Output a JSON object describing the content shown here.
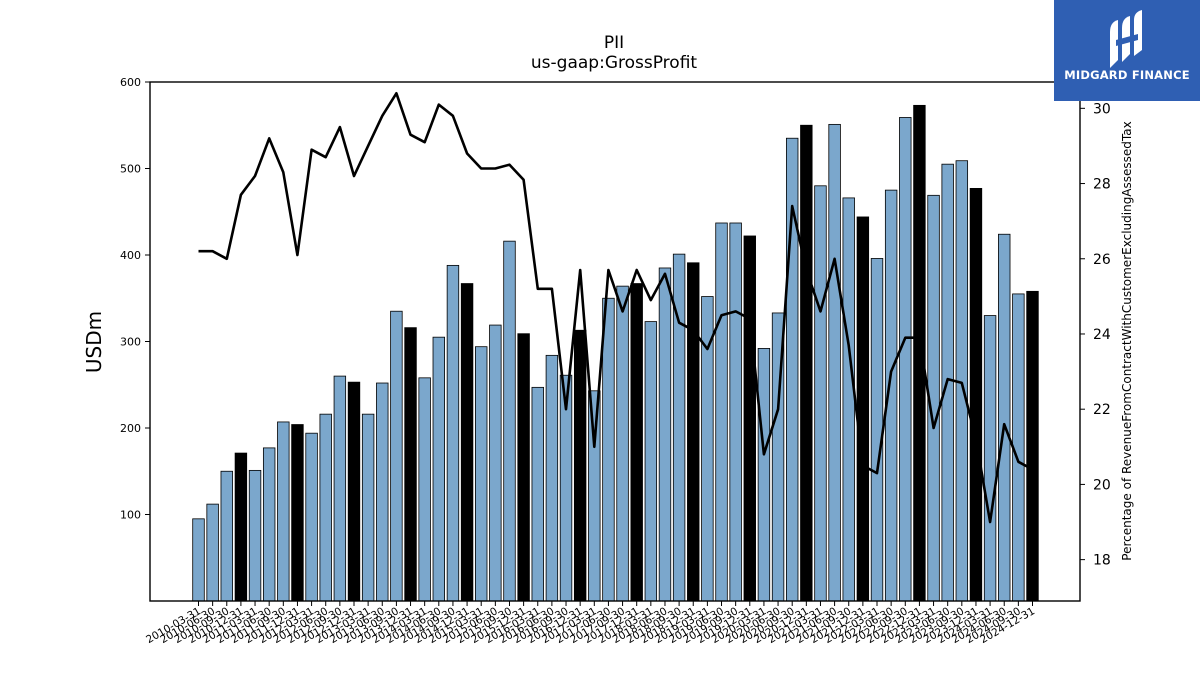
{
  "chart_data": {
    "type": "bar",
    "title": "PII",
    "subtitle": "us-gaap:GrossProfit",
    "ylabel": "USDm",
    "y2label": "Percentage of RevenueFromContractWithCustomerExcludingAssessedTax",
    "ylim": [
      0,
      600
    ],
    "y2lim": [
      16.9,
      30.7
    ],
    "yticks": [
      100,
      200,
      300,
      400,
      500,
      600
    ],
    "y2ticks": [
      18,
      20,
      22,
      24,
      26,
      28,
      30
    ],
    "grid": false,
    "bar_color": "#7ba7cc",
    "annual_bar_color": "#000000",
    "line_color": "#000000",
    "categories": [
      "2010-03-31",
      "2010-06-30",
      "2010-09-30",
      "2010-12-31",
      "2011-03-31",
      "2011-06-30",
      "2011-09-30",
      "2011-12-31",
      "2012-03-31",
      "2012-06-30",
      "2012-09-30",
      "2012-12-31",
      "2013-03-31",
      "2013-06-30",
      "2013-09-30",
      "2013-12-31",
      "2014-03-31",
      "2014-06-30",
      "2014-09-30",
      "2014-12-31",
      "2015-03-31",
      "2015-06-30",
      "2015-09-30",
      "2015-12-31",
      "2016-03-31",
      "2016-06-30",
      "2016-09-30",
      "2016-12-31",
      "2017-03-31",
      "2017-06-30",
      "2017-09-30",
      "2017-12-31",
      "2018-03-31",
      "2018-06-30",
      "2018-09-30",
      "2018-12-31",
      "2019-03-31",
      "2019-06-30",
      "2019-09-30",
      "2019-12-31",
      "2020-03-31",
      "2020-06-30",
      "2020-09-30",
      "2020-12-31",
      "2021-03-31",
      "2021-06-30",
      "2021-09-30",
      "2021-12-31",
      "2022-03-31",
      "2022-06-30",
      "2022-09-30",
      "2022-12-31",
      "2023-03-31",
      "2023-06-30",
      "2023-09-30",
      "2023-12-31",
      "2024-03-31",
      "2024-06-30",
      "2024-09-30",
      "2024-12-31"
    ],
    "series": [
      {
        "axis": "left",
        "kind": "bar",
        "values": [
          95,
          112,
          150,
          171,
          151,
          177,
          207,
          204,
          194,
          216,
          260,
          253,
          216,
          252,
          335,
          316,
          258,
          305,
          388,
          367,
          294,
          319,
          416,
          309,
          247,
          284,
          261,
          313,
          243,
          350,
          364,
          367,
          323,
          385,
          401,
          391,
          352,
          437,
          437,
          422,
          292,
          333,
          535,
          550,
          480,
          551,
          466,
          444,
          396,
          475,
          559,
          573,
          469,
          505,
          509,
          477,
          330,
          424,
          355,
          358
        ],
        "annual": [
          false,
          false,
          false,
          true,
          false,
          false,
          false,
          true,
          false,
          false,
          false,
          true,
          false,
          false,
          false,
          true,
          false,
          false,
          false,
          true,
          false,
          false,
          false,
          true,
          false,
          false,
          false,
          true,
          false,
          false,
          false,
          true,
          false,
          false,
          false,
          true,
          false,
          false,
          false,
          true,
          false,
          false,
          false,
          true,
          false,
          false,
          false,
          true,
          false,
          false,
          false,
          true,
          false,
          false,
          false,
          true,
          false,
          false,
          false,
          true
        ]
      },
      {
        "axis": "right",
        "kind": "line",
        "values": [
          26.2,
          26.2,
          26.0,
          27.7,
          28.2,
          29.2,
          28.3,
          26.1,
          28.9,
          28.7,
          29.5,
          28.2,
          29.0,
          29.8,
          30.4,
          29.3,
          29.1,
          30.1,
          29.8,
          28.8,
          28.4,
          28.4,
          28.5,
          28.1,
          25.2,
          25.2,
          22.0,
          25.7,
          21.0,
          25.7,
          24.6,
          25.7,
          24.9,
          25.6,
          24.3,
          24.1,
          23.6,
          24.5,
          24.6,
          24.4,
          20.8,
          22.0,
          27.4,
          25.7,
          24.6,
          26.0,
          23.7,
          20.5,
          20.3,
          23.0,
          23.9,
          23.9,
          21.5,
          22.8,
          22.7,
          21.2,
          19.0,
          21.6,
          20.6,
          20.4
        ]
      }
    ]
  },
  "logo": {
    "text": "MIDGARD FINANCE"
  }
}
